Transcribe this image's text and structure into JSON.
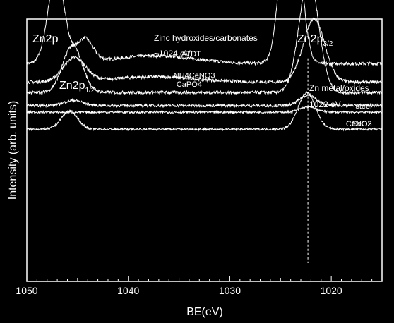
{
  "colors": {
    "background": "#000000",
    "foreground": "#ffffff"
  },
  "chart_data": {
    "type": "line",
    "panel_label": "Zn2p",
    "xlabel": "BE(eV)",
    "ylabel": "Intensity (arb. units)",
    "xlim": [
      1050,
      1015
    ],
    "x_reversed": true,
    "xticks": [
      1050,
      1040,
      1030,
      1020
    ],
    "y_tick_labels": false,
    "grid": false,
    "annotations": {
      "peak_left_main": "Zn2p",
      "peak_left_sub": "1/2",
      "peak_right_main": "Zn2p",
      "peak_right_sub": "3/2",
      "hydroxide_line1": "Zinc hydroxides/carbonates",
      "hydroxide_line2": "~1024 eV",
      "metal_line1": "Zn metal/oxides",
      "metal_line2": "1022 eV"
    },
    "reference_line_x": 1022.3,
    "series": [
      {
        "name": "ATDT",
        "offset": 0.83,
        "noise": 0.006,
        "peaks": [
          {
            "x": 1024.0,
            "h": 0.8,
            "w": 0.85
          },
          {
            "x": 1047.1,
            "h": 0.34,
            "w": 0.8
          },
          {
            "x": 1044.3,
            "h": 0.09,
            "w": 0.8
          },
          {
            "x": 1037.5,
            "h": 0.03,
            "w": 4.0
          }
        ]
      },
      {
        "name": "NH4CeNO3",
        "offset": 0.76,
        "noise": 0.006,
        "peaks": [
          {
            "x": 1021.7,
            "h": 0.24,
            "w": 1.05
          },
          {
            "x": 1045.3,
            "h": 0.09,
            "w": 1.1
          },
          {
            "x": 1037.5,
            "h": 0.02,
            "w": 4.0
          }
        ]
      },
      {
        "name": "CaPO4",
        "offset": 0.72,
        "noise": 0.006,
        "peaks": [
          {
            "x": 1022.2,
            "h": 0.44,
            "w": 0.95
          },
          {
            "x": 1045.5,
            "h": 0.18,
            "w": 0.95
          }
        ]
      },
      {
        "name": "steel",
        "offset": 0.67,
        "noise": 0.005,
        "peaks": [
          {
            "x": 1022.3,
            "h": 0.04,
            "w": 0.8
          },
          {
            "x": 1045.4,
            "h": 0.02,
            "w": 0.9
          }
        ]
      },
      {
        "name": "CeNO3",
        "offset": 0.645,
        "noise": 0.004,
        "peaks": [
          {
            "x": 1022.3,
            "h": 0.02,
            "w": 0.8
          }
        ]
      },
      {
        "name": "CeO2",
        "offset": 0.58,
        "noise": 0.004,
        "peaks": [
          {
            "x": 1022.4,
            "h": 0.14,
            "w": 0.85
          },
          {
            "x": 1045.8,
            "h": 0.07,
            "w": 0.8
          }
        ]
      }
    ]
  }
}
